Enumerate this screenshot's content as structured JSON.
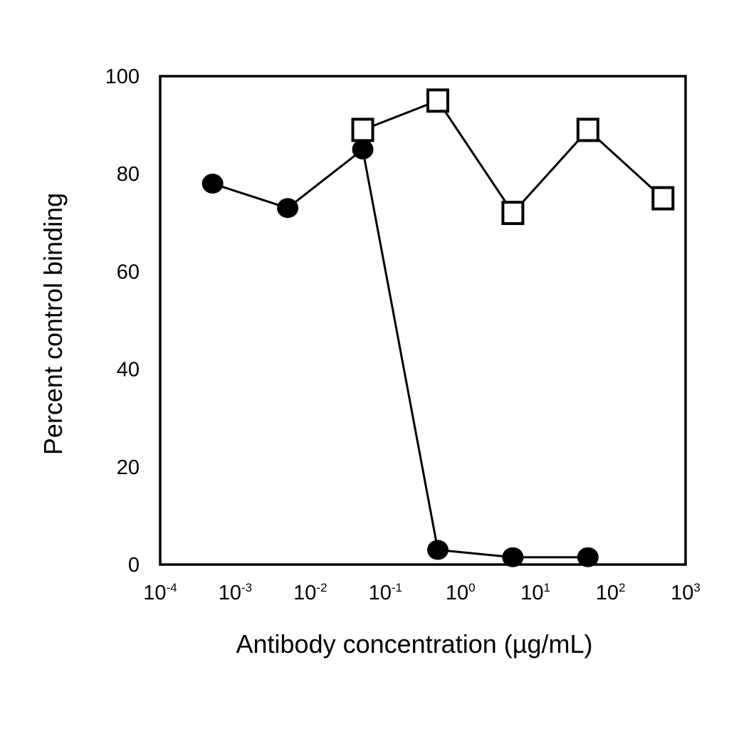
{
  "chart_data": {
    "type": "scatter",
    "title": "",
    "xlabel": "Antibody concentration (µg/mL)",
    "ylabel": "Percent control binding",
    "xscale": "log",
    "xlim": [
      0.0001,
      1000
    ],
    "ylim": [
      0,
      100
    ],
    "grid": false,
    "legend": "none",
    "x_ticks": [
      {
        "value": 0.0001,
        "base": "10",
        "exp": "-4"
      },
      {
        "value": 0.001,
        "base": "10",
        "exp": "-3"
      },
      {
        "value": 0.01,
        "base": "10",
        "exp": "-2"
      },
      {
        "value": 0.1,
        "base": "10",
        "exp": "-1"
      },
      {
        "value": 1,
        "base": "10",
        "exp": "0"
      },
      {
        "value": 10,
        "base": "10",
        "exp": "1"
      },
      {
        "value": 100,
        "base": "10",
        "exp": "2"
      },
      {
        "value": 1000,
        "base": "10",
        "exp": "3"
      }
    ],
    "y_ticks": [
      {
        "value": 0,
        "label": "0"
      },
      {
        "value": 20,
        "label": "20"
      },
      {
        "value": 40,
        "label": "40"
      },
      {
        "value": 60,
        "label": "60"
      },
      {
        "value": 80,
        "label": "80"
      },
      {
        "value": 100,
        "label": "100"
      }
    ],
    "series": [
      {
        "marker": "filled-circle",
        "color": "#000000",
        "points": [
          {
            "x": 0.0005,
            "y": 78
          },
          {
            "x": 0.005,
            "y": 73
          },
          {
            "x": 0.05,
            "y": 85
          },
          {
            "x": 0.5,
            "y": 3
          },
          {
            "x": 5,
            "y": 1.5
          },
          {
            "x": 50,
            "y": 1.5
          }
        ]
      },
      {
        "marker": "open-square",
        "color": "#000000",
        "points": [
          {
            "x": 0.05,
            "y": 89
          },
          {
            "x": 0.5,
            "y": 95
          },
          {
            "x": 5,
            "y": 72
          },
          {
            "x": 50,
            "y": 89
          },
          {
            "x": 500,
            "y": 75
          }
        ]
      }
    ]
  }
}
